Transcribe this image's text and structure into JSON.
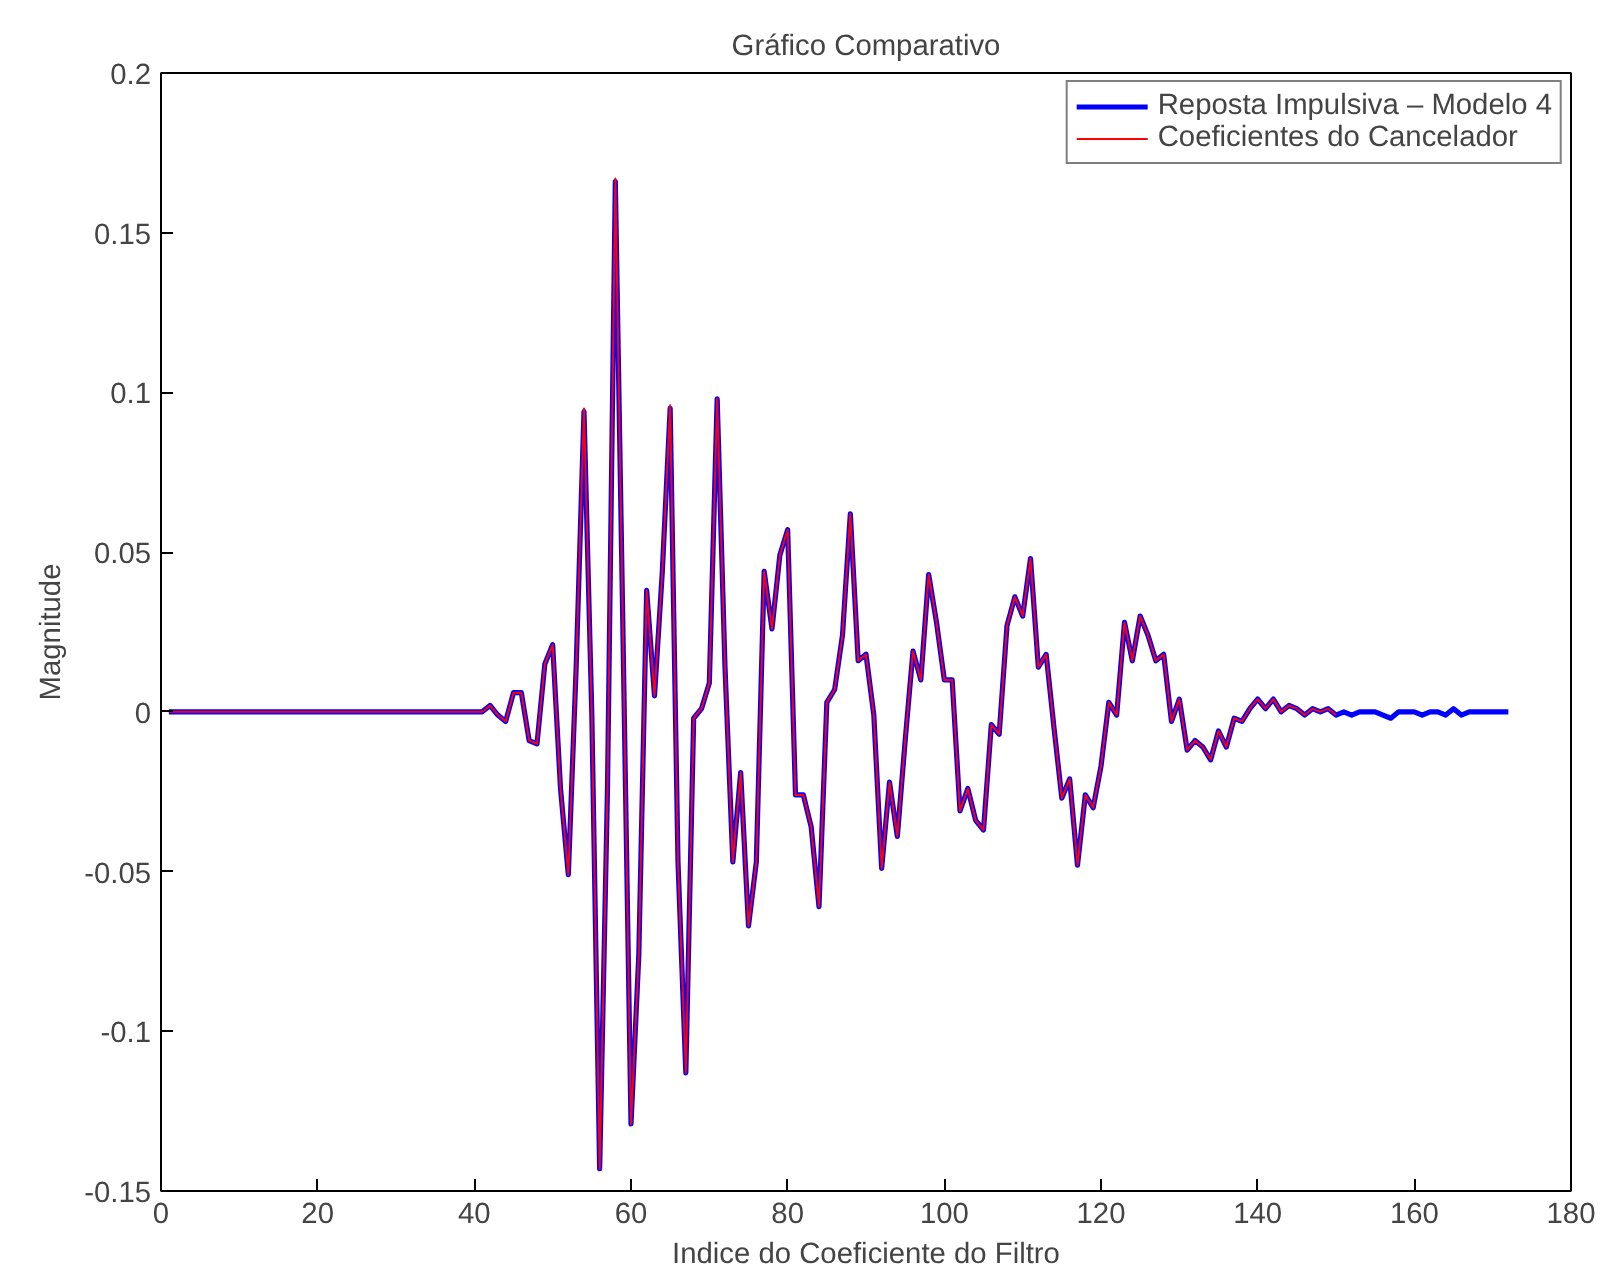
{
  "chart_data": {
    "type": "line",
    "title": "Gráfico Comparativo",
    "xlabel": "Indice do Coeficiente do Filtro",
    "ylabel": "Magnitude",
    "xlim": [
      0,
      180
    ],
    "ylim": [
      -0.15,
      0.2
    ],
    "xticks": [
      0,
      20,
      40,
      60,
      80,
      100,
      120,
      140,
      160,
      180
    ],
    "yticks": [
      -0.15,
      -0.1,
      -0.05,
      0,
      0.05,
      0.1,
      0.15,
      0.2
    ],
    "grid": false,
    "legend": "top right",
    "series": [
      {
        "name": "Reposta Impulsiva – Modelo 4",
        "color": "#0000ff",
        "x": [
          1,
          41,
          42,
          43,
          44,
          45,
          46,
          47,
          48,
          49,
          50,
          51,
          52,
          53,
          54,
          55,
          56,
          57,
          58,
          59,
          60,
          61,
          62,
          63,
          64,
          65,
          66,
          67,
          68,
          69,
          70,
          71,
          72,
          73,
          74,
          75,
          76,
          77,
          78,
          79,
          80,
          81,
          82,
          83,
          84,
          85,
          86,
          87,
          88,
          89,
          90,
          91,
          92,
          93,
          94,
          95,
          96,
          97,
          98,
          99,
          100,
          101,
          102,
          103,
          104,
          105,
          106,
          107,
          108,
          109,
          110,
          111,
          112,
          113,
          114,
          115,
          116,
          117,
          118,
          119,
          120,
          121,
          122,
          123,
          124,
          125,
          126,
          127,
          128,
          129,
          130,
          131,
          132,
          133,
          134,
          135,
          136,
          137,
          138,
          139,
          140,
          141,
          142,
          143,
          144,
          145,
          146,
          147,
          148,
          149,
          150,
          151,
          152,
          153,
          154,
          155,
          156,
          157,
          158,
          159,
          160,
          161,
          162,
          163,
          164,
          165,
          166,
          167,
          168,
          172
        ],
        "values": [
          0,
          0,
          0.002,
          -0.001,
          -0.003,
          0.006,
          0.006,
          -0.009,
          -0.01,
          0.015,
          0.021,
          -0.024,
          -0.051,
          0.014,
          0.094,
          -0.001,
          -0.143,
          -0.024,
          0.166,
          0.021,
          -0.129,
          -0.076,
          0.038,
          0.005,
          0.044,
          0.095,
          -0.047,
          -0.113,
          -0.002,
          0.001,
          0.009,
          0.098,
          0.014,
          -0.047,
          -0.019,
          -0.067,
          -0.047,
          0.044,
          0.026,
          0.049,
          0.057,
          -0.026,
          -0.026,
          -0.036,
          -0.061,
          0.003,
          0.007,
          0.024,
          0.062,
          0.016,
          0.018,
          -0.001,
          -0.049,
          -0.022,
          -0.039,
          -0.009,
          0.019,
          0.01,
          0.043,
          0.028,
          0.01,
          0.01,
          -0.031,
          -0.024,
          -0.034,
          -0.037,
          -0.004,
          -0.007,
          0.027,
          0.036,
          0.03,
          0.048,
          0.014,
          0.018,
          -0.005,
          -0.027,
          -0.021,
          -0.048,
          -0.026,
          -0.03,
          -0.017,
          0.003,
          -0.001,
          0.028,
          0.016,
          0.03,
          0.024,
          0.016,
          0.018,
          -0.003,
          0.004,
          -0.012,
          -0.009,
          -0.011,
          -0.015,
          -0.006,
          -0.011,
          -0.002,
          -0.003,
          0.001,
          0.004,
          0.001,
          0.004,
          0,
          0.002,
          0.001,
          -0.001,
          0.001,
          0,
          0.001,
          -0.001,
          0,
          -0.001,
          0,
          0,
          0,
          -0.001,
          -0.002,
          0,
          0,
          0,
          -0.001,
          0,
          0,
          -0.001,
          0.001,
          -0.001,
          0,
          0,
          0
        ]
      },
      {
        "name": "Coeficientes do Cancelador",
        "color": "#ff0000",
        "x": [
          1,
          41,
          42,
          43,
          44,
          45,
          46,
          47,
          48,
          49,
          50,
          51,
          52,
          53,
          54,
          55,
          56,
          57,
          58,
          59,
          60,
          61,
          62,
          63,
          64,
          65,
          66,
          67,
          68,
          69,
          70,
          71,
          72,
          73,
          74,
          75,
          76,
          77,
          78,
          79,
          80,
          81,
          82,
          83,
          84,
          85,
          86,
          87,
          88,
          89,
          90,
          91,
          92,
          93,
          94,
          95,
          96,
          97,
          98,
          99,
          100,
          101,
          102,
          103,
          104,
          105,
          106,
          107,
          108,
          109,
          110,
          111,
          112,
          113,
          114,
          115,
          116,
          117,
          118,
          119,
          120,
          121,
          122,
          123,
          124,
          125,
          126,
          127,
          128,
          129,
          130,
          131,
          132,
          133,
          134,
          135,
          136,
          137,
          138,
          139,
          140,
          141,
          142,
          143,
          144,
          145,
          146,
          147,
          148,
          149,
          150
        ],
        "values": [
          0,
          0,
          0.002,
          -0.001,
          -0.003,
          0.006,
          0.006,
          -0.009,
          -0.01,
          0.015,
          0.021,
          -0.024,
          -0.051,
          0.014,
          0.095,
          -0.001,
          -0.143,
          -0.024,
          0.167,
          0.021,
          -0.129,
          -0.076,
          0.038,
          0.005,
          0.044,
          0.096,
          -0.047,
          -0.113,
          -0.002,
          0.001,
          0.009,
          0.098,
          0.014,
          -0.047,
          -0.019,
          -0.067,
          -0.047,
          0.044,
          0.026,
          0.049,
          0.057,
          -0.026,
          -0.026,
          -0.036,
          -0.061,
          0.003,
          0.007,
          0.024,
          0.062,
          0.016,
          0.018,
          -0.001,
          -0.049,
          -0.022,
          -0.039,
          -0.009,
          0.019,
          0.01,
          0.043,
          0.028,
          0.01,
          0.01,
          -0.031,
          -0.024,
          -0.034,
          -0.037,
          -0.004,
          -0.007,
          0.027,
          0.036,
          0.03,
          0.048,
          0.014,
          0.018,
          -0.005,
          -0.027,
          -0.021,
          -0.048,
          -0.026,
          -0.03,
          -0.017,
          0.003,
          -0.001,
          0.028,
          0.016,
          0.03,
          0.024,
          0.016,
          0.018,
          -0.003,
          0.004,
          -0.012,
          -0.009,
          -0.011,
          -0.015,
          -0.006,
          -0.011,
          -0.002,
          -0.003,
          0.001,
          0.004,
          0.001,
          0.004,
          0,
          0.002,
          0.001,
          -0.001,
          0.001,
          0,
          0.001,
          -0.001
        ]
      }
    ]
  }
}
